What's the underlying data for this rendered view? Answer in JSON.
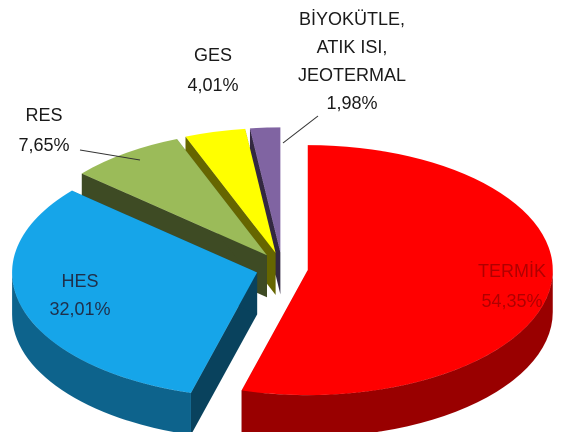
{
  "chart_data": {
    "type": "pie",
    "categories": [
      "TERMİK",
      "HES",
      "RES",
      "GES",
      "BİYOKÜTLE, ATIK ISI, JEOTERMAL"
    ],
    "values": [
      54.35,
      32.01,
      7.65,
      4.01,
      1.98
    ],
    "value_labels": [
      "54,35%",
      "32,01%",
      "7,65%",
      "4,01%",
      "1,98%"
    ],
    "colors": [
      "#ff0000",
      "#16a5e9",
      "#9bbb59",
      "#ffff00",
      "#8064a2"
    ]
  }
}
